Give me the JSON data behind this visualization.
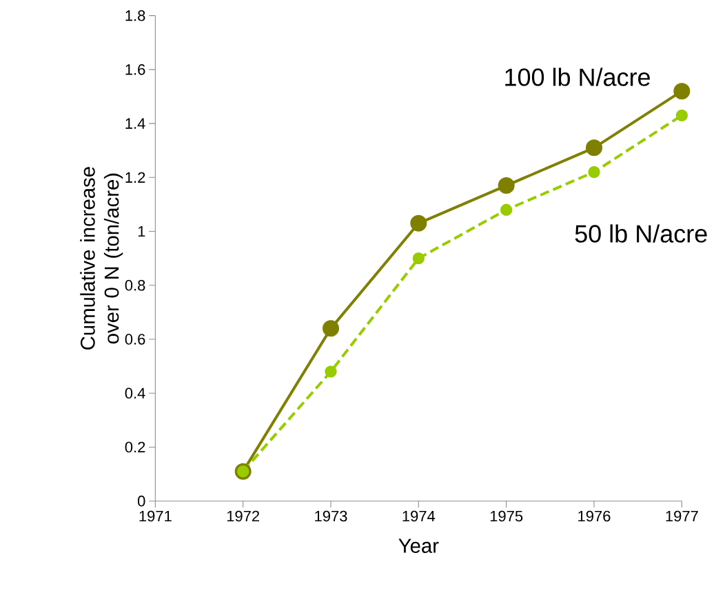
{
  "chart_data": {
    "type": "line",
    "xlabel": "Year",
    "ylabel": "Cumulative increase  over 0 N (ton/acre)",
    "x": [
      1972,
      1973,
      1974,
      1975,
      1976,
      1977
    ],
    "series": [
      {
        "name": "100 lb N/acre",
        "color": "#7f7f00",
        "values": [
          0.11,
          0.64,
          1.03,
          1.17,
          1.31,
          1.52
        ],
        "line_style": "solid"
      },
      {
        "name": "50 lb N/acre",
        "color": "#99cc00",
        "values": [
          0.11,
          0.48,
          0.9,
          1.08,
          1.22,
          1.43
        ],
        "line_style": "dashed"
      }
    ],
    "xlim": [
      1971,
      1977
    ],
    "xticks": [
      1971,
      1972,
      1973,
      1974,
      1975,
      1976,
      1977
    ],
    "ylim": [
      0,
      1.8
    ],
    "yticks": [
      0,
      0.2,
      0.4,
      0.6,
      0.8,
      1,
      1.2,
      1.4,
      1.6,
      1.8
    ],
    "marker": "circle",
    "grid": false,
    "legend": false
  }
}
